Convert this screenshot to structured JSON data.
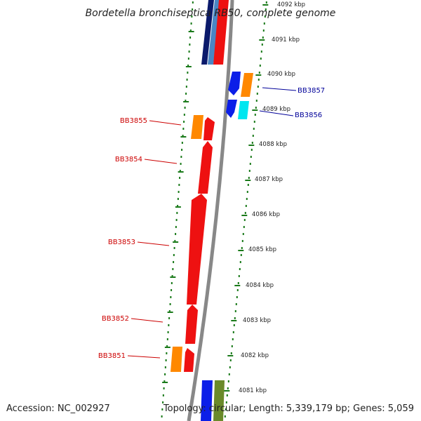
{
  "title": "Bordetella bronchiseptica RB50, complete genome",
  "footer": {
    "accession": "Accession: NC_002927",
    "topology": "Topology: circular; Length: 5,339,179 bp; Genes: 5,059"
  },
  "colors": {
    "ruler": "#1a7a1a",
    "backbone": "#888888",
    "red": "#ee1111",
    "orange": "#ff8800",
    "blue": "#0b1ee8",
    "navy": "#0b1a6b",
    "steelblue": "#4a86c4",
    "cyan": "#00e6f0",
    "olive": "#6a8a2a",
    "forward_label": "#cc0000",
    "reverse_label": "#000099"
  },
  "ticks": [
    {
      "label": "4092 kbp"
    },
    {
      "label": "4091 kbp"
    },
    {
      "label": "4090 kbp"
    },
    {
      "label": "4089 kbp"
    },
    {
      "label": "4088 kbp"
    },
    {
      "label": "4087 kbp"
    },
    {
      "label": "4086 kbp"
    },
    {
      "label": "4085 kbp"
    },
    {
      "label": "4084 kbp"
    },
    {
      "label": "4083 kbp"
    },
    {
      "label": "4082 kbp"
    },
    {
      "label": "4081 kbp"
    }
  ],
  "gene_labels": [
    {
      "name": "BB3857",
      "strand": "reverse"
    },
    {
      "name": "BB3856",
      "strand": "reverse"
    },
    {
      "name": "BB3855",
      "strand": "forward"
    },
    {
      "name": "BB3854",
      "strand": "forward"
    },
    {
      "name": "BB3853",
      "strand": "forward"
    },
    {
      "name": "BB3852",
      "strand": "forward"
    },
    {
      "name": "BB3851",
      "strand": "forward"
    }
  ]
}
